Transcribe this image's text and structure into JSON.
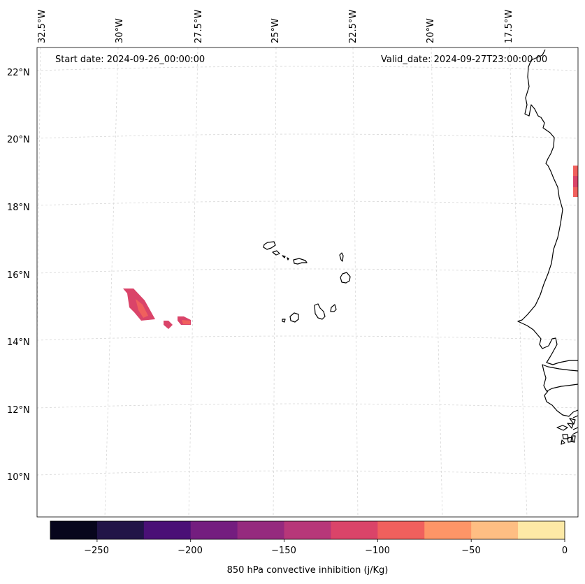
{
  "map": {
    "start_date": "Start date: 2024-09-26_00:00:00",
    "valid_date": "Valid_date: 2024-09-27T23:00:00.00",
    "lon_labels": [
      "32.5°W",
      "30°W",
      "27.5°W",
      "25°W",
      "22.5°W",
      "20°W",
      "17.5°W"
    ],
    "lat_labels": [
      "22°N",
      "20°N",
      "18°N",
      "16°N",
      "14°N",
      "12°N",
      "10°N"
    ],
    "gridlines": "dashed light grey",
    "features": [
      "Cape Verde islands",
      "West African coastline"
    ]
  },
  "colorbar": {
    "label": "850 hPa convective inhibition (j/Kg)",
    "ticks": [
      "−250",
      "−200",
      "−150",
      "−100",
      "−50",
      "0"
    ],
    "levels": [
      -275,
      -250,
      -225,
      -200,
      -175,
      -150,
      -125,
      -100,
      -75,
      -50,
      -25,
      0
    ],
    "colors": [
      "#07061c",
      "#211447",
      "#4a1076",
      "#741d7f",
      "#952a7e",
      "#b73779",
      "#da4469",
      "#f0605d",
      "#fd9567",
      "#febe83",
      "#fde9a6"
    ]
  }
}
